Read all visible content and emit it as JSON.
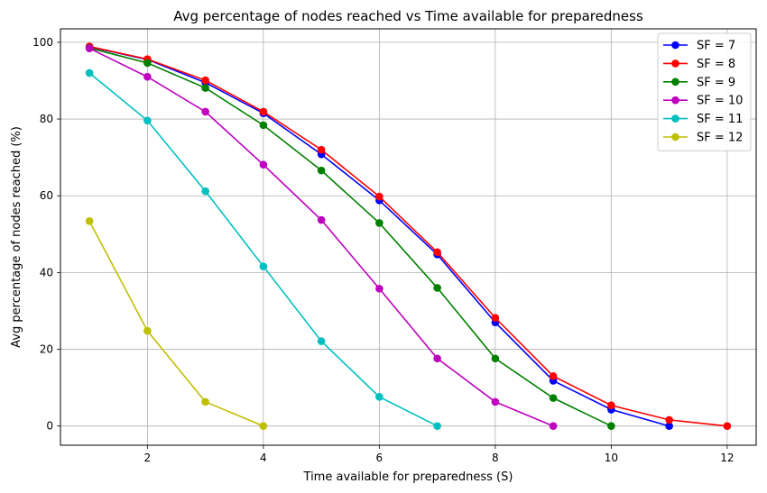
{
  "chart_data": {
    "type": "line",
    "title": "Avg percentage of nodes reached vs Time available for preparedness",
    "xlabel": "Time available for preparedness (S)",
    "ylabel": "Avg percentage of nodes reached (%)",
    "xlim": [
      0.5,
      12.5
    ],
    "ylim": [
      -5,
      103.5
    ],
    "xticks": [
      2,
      4,
      6,
      8,
      10,
      12
    ],
    "yticks": [
      0,
      20,
      40,
      60,
      80,
      100
    ],
    "grid": true,
    "legend_position": "top-right",
    "series": [
      {
        "name": "SF = 7",
        "color": "#0000ff",
        "x": [
          1,
          2,
          3,
          4,
          5,
          6,
          7,
          8,
          9,
          10,
          11
        ],
        "y": [
          98.8,
          95.5,
          89.5,
          81.5,
          70.8,
          58.8,
          44.7,
          27.0,
          11.8,
          4.3,
          0.0
        ]
      },
      {
        "name": "SF = 8",
        "color": "#ff0000",
        "x": [
          1,
          2,
          3,
          4,
          5,
          6,
          7,
          8,
          9,
          10,
          11,
          12
        ],
        "y": [
          98.9,
          95.6,
          90.1,
          81.9,
          72.0,
          59.8,
          45.3,
          28.2,
          13.0,
          5.4,
          1.6,
          0.0
        ]
      },
      {
        "name": "SF = 9",
        "color": "#008000",
        "x": [
          1,
          2,
          3,
          4,
          5,
          6,
          7,
          8,
          9,
          10
        ],
        "y": [
          98.5,
          94.6,
          88.1,
          78.4,
          66.6,
          52.9,
          36.0,
          17.6,
          7.3,
          0.0
        ]
      },
      {
        "name": "SF = 10",
        "color": "#bf00bf",
        "x": [
          1,
          2,
          3,
          4,
          5,
          6,
          7,
          8,
          9
        ],
        "y": [
          98.4,
          91.0,
          81.9,
          68.1,
          53.7,
          35.8,
          17.6,
          6.3,
          0.0
        ]
      },
      {
        "name": "SF = 11",
        "color": "#00bfbf",
        "x": [
          1,
          2,
          3,
          4,
          5,
          6,
          7
        ],
        "y": [
          92.0,
          79.6,
          61.2,
          41.6,
          22.1,
          7.6,
          0.0
        ]
      },
      {
        "name": "SF = 12",
        "color": "#bfbf00",
        "x": [
          1,
          2,
          3,
          4
        ],
        "y": [
          53.4,
          24.8,
          6.3,
          0.0
        ]
      }
    ]
  }
}
